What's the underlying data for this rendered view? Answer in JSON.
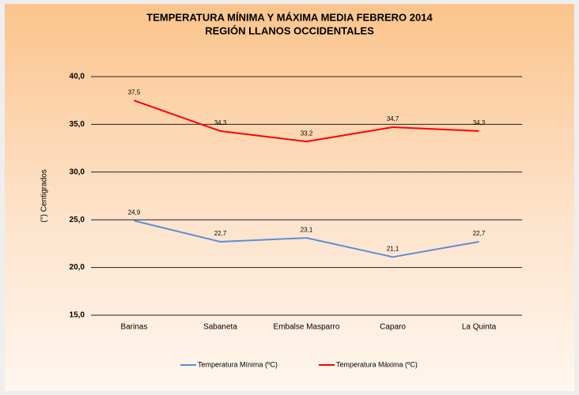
{
  "chart_data": {
    "type": "line",
    "title": "TEMPERATURA MÍNIMA Y MÁXIMA MEDIA FEBRERO 2014",
    "subtitle": "REGIÓN LLANOS OCCIDENTALES",
    "y_label": "(°) Centigrados",
    "categories": [
      "Barinas",
      "Sabaneta",
      "Embalse Masparro",
      "Caparo",
      "La Quinta"
    ],
    "series": [
      {
        "name": "Temperatura  Mínima (ºC)",
        "color": "#5b8fd6",
        "values": [
          24.9,
          22.7,
          23.1,
          21.1,
          22.7
        ],
        "value_labels": [
          "24,9",
          "22,7",
          "23,1",
          "21,1",
          "22,7"
        ]
      },
      {
        "name": "Temperatura  Máxima (ºC)",
        "color": "#ff0000",
        "values": [
          37.5,
          34.3,
          33.2,
          34.7,
          34.3
        ],
        "value_labels": [
          "37,5",
          "34,3",
          "33,2",
          "34,7",
          "34,3"
        ]
      }
    ],
    "ylim": [
      15,
      40
    ],
    "yticks": [
      {
        "value": 15,
        "label": "15,0"
      },
      {
        "value": 20,
        "label": "20,0"
      },
      {
        "value": 25,
        "label": "25,0"
      },
      {
        "value": 30,
        "label": "30,0"
      },
      {
        "value": 35,
        "label": "35,0"
      },
      {
        "value": 40,
        "label": "40,0"
      }
    ],
    "grid": true,
    "legend": "bottom"
  }
}
